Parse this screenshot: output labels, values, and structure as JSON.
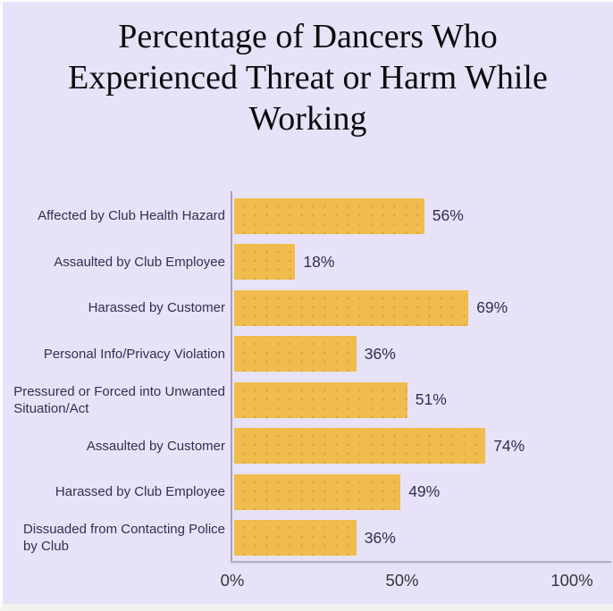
{
  "title": "Percentage of Dancers Who\nExperienced Threat or Harm While\nWorking",
  "chart_data": {
    "type": "bar",
    "orientation": "horizontal",
    "title": "Percentage of Dancers Who Experienced Threat or Harm While Working",
    "categories": [
      "Affected by Club Health Hazard",
      "Assaulted by Club Employee",
      "Harassed by Customer",
      "Personal Info/Privacy Violation",
      "Pressured or Forced into Unwanted\nSituation/Act",
      "Assaulted by Customer",
      "Harassed by Club Employee",
      "Dissuaded from Contacting Police\nby Club"
    ],
    "values": [
      56,
      18,
      69,
      36,
      51,
      74,
      49,
      36
    ],
    "unit": "%",
    "xlabel": "",
    "ylabel": "",
    "xlim": [
      0,
      100
    ],
    "xticks": [
      {
        "value": 0,
        "label": "0%"
      },
      {
        "value": 50,
        "label": "50%"
      },
      {
        "value": 100,
        "label": "100%"
      }
    ],
    "grid": false,
    "legend": null,
    "colors": {
      "background": "#e7e2f7",
      "bar": "#efbc4d",
      "bar_dot": "#d9a63c",
      "label_text": "#33304f",
      "value_text": "#322e52",
      "tick_text": "#363636",
      "axis_line": "#a5a2b0",
      "baseline": "#b2afbf",
      "title_text": "#0c0c0e"
    }
  }
}
